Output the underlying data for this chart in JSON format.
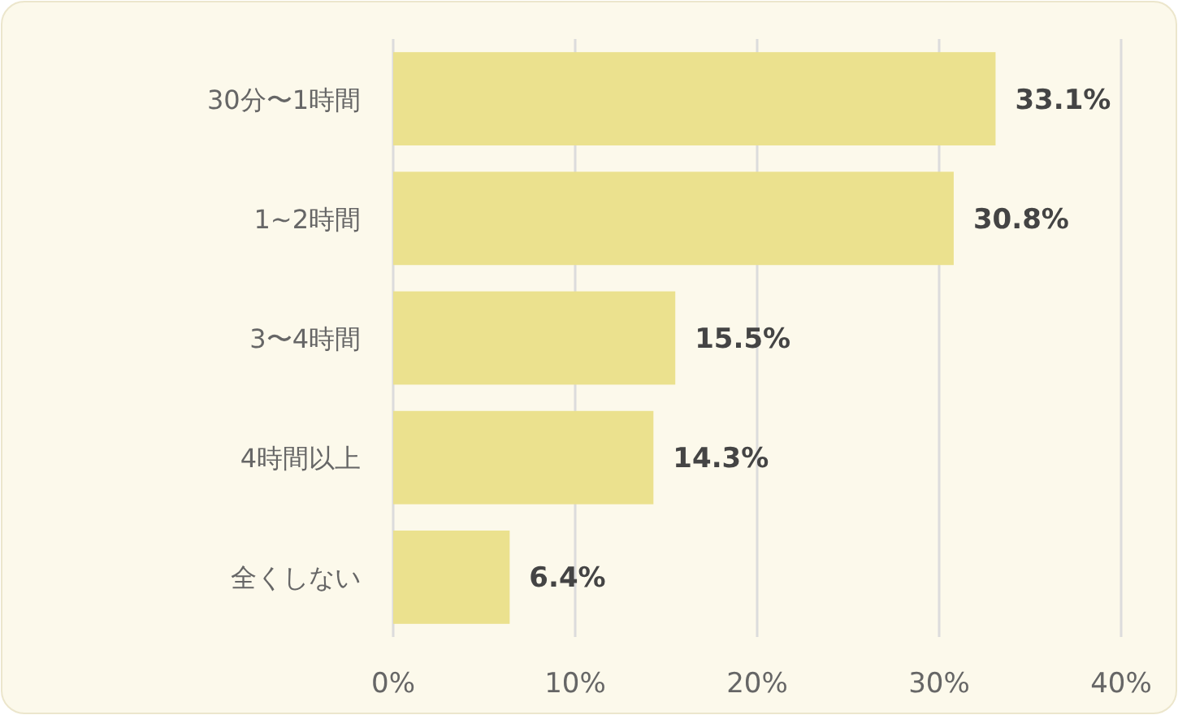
{
  "chart_data": {
    "type": "bar",
    "orientation": "horizontal",
    "categories": [
      "30分〜1時間",
      "1~2時間",
      "3〜4時間",
      "4時間以上",
      "全くしない"
    ],
    "values": [
      33.1,
      30.8,
      15.5,
      14.3,
      6.4
    ],
    "value_labels": [
      "33.1%",
      "30.8%",
      "15.5%",
      "14.3%",
      "6.4%"
    ],
    "color": "#ebe18e",
    "xlim": [
      0,
      40
    ],
    "xticks": [
      {
        "value": 0,
        "label": "0%"
      },
      {
        "value": 10,
        "label": "10%"
      },
      {
        "value": 20,
        "label": "20%"
      },
      {
        "value": 30,
        "label": "30%"
      },
      {
        "value": 40,
        "label": "40%"
      }
    ],
    "grid": "x"
  }
}
